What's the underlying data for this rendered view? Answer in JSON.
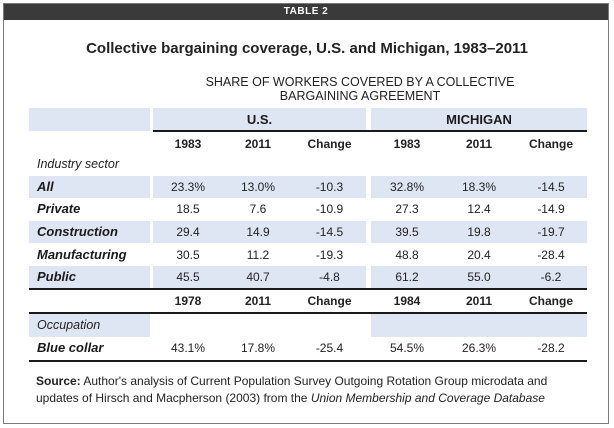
{
  "table_label": "TABLE 2",
  "title": "Collective bargaining coverage, U.S. and Michigan, 1983–2011",
  "super_header": "SHARE OF WORKERS COVERED BY A COLLECTIVE BARGAINING AGREEMENT",
  "groups": [
    "U.S.",
    "MICHIGAN"
  ],
  "industry": {
    "columns": [
      "1983",
      "2011",
      "Change",
      "1983",
      "2011",
      "Change"
    ],
    "section_label": "Industry sector",
    "rows": [
      {
        "label": "All",
        "values": [
          "23.3%",
          "13.0%",
          "-10.3",
          "32.8%",
          "18.3%",
          "-14.5"
        ]
      },
      {
        "label": "Private",
        "values": [
          "18.5",
          "7.6",
          "-10.9",
          "27.3",
          "12.4",
          "-14.9"
        ]
      },
      {
        "label": "Construction",
        "values": [
          "29.4",
          "14.9",
          "-14.5",
          "39.5",
          "19.8",
          "-19.7"
        ]
      },
      {
        "label": "Manufacturing",
        "values": [
          "30.5",
          "11.2",
          "-19.3",
          "48.8",
          "20.4",
          "-28.4"
        ]
      },
      {
        "label": "Public",
        "values": [
          "45.5",
          "40.7",
          "-4.8",
          "61.2",
          "55.0",
          "-6.2"
        ]
      }
    ]
  },
  "occupation": {
    "columns": [
      "1978",
      "2011",
      "Change",
      "1984",
      "2011",
      "Change"
    ],
    "section_label": "Occupation",
    "rows": [
      {
        "label": "Blue collar",
        "values": [
          "43.1%",
          "17.8%",
          "-25.4",
          "54.5%",
          "26.3%",
          "-28.2"
        ]
      }
    ]
  },
  "source": {
    "label": "Source:",
    "text_before": " Author's analysis of Current Population Survey Outgoing Rotation Group microdata and updates of Hirsch and Macpherson (2003) from the ",
    "database": "Union Membership and Coverage Database",
    "text_after": ""
  },
  "colors": {
    "shade": "#dfe6f3",
    "label_bar": "#3a3a3a",
    "rule": "#1a1a1a"
  }
}
